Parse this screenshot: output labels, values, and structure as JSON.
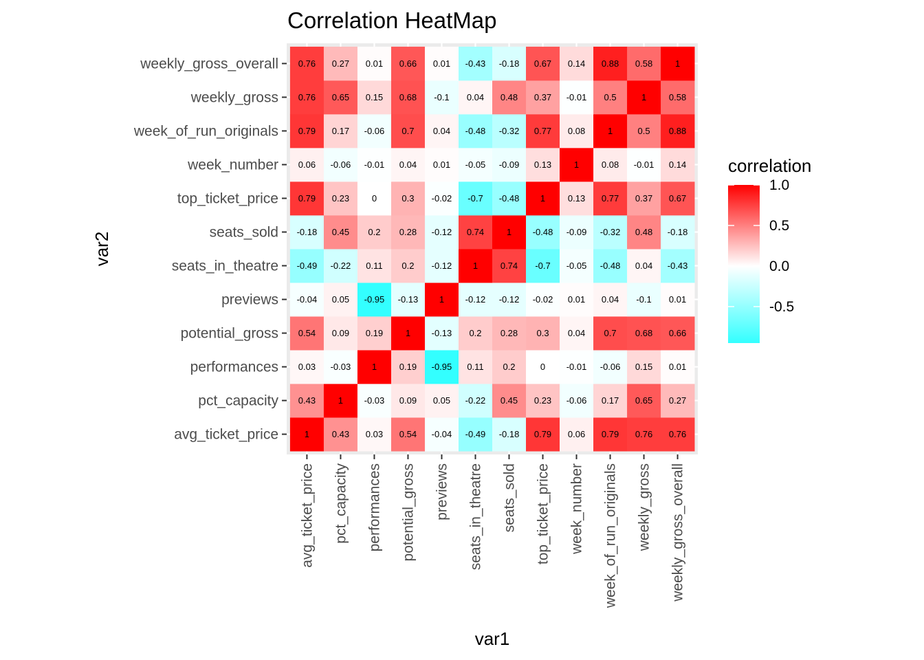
{
  "chart_data": {
    "type": "heatmap",
    "title": "Correlation HeatMap",
    "xlabel": "var1",
    "ylabel": "var2",
    "variables": [
      "avg_ticket_price",
      "pct_capacity",
      "performances",
      "potential_gross",
      "previews",
      "seats_in_theatre",
      "seats_sold",
      "top_ticket_price",
      "week_number",
      "week_of_run_originals",
      "weekly_gross",
      "weekly_gross_overall"
    ],
    "matrix": [
      [
        1,
        0.43,
        0.03,
        0.54,
        -0.04,
        -0.49,
        -0.18,
        0.79,
        0.06,
        0.79,
        0.76,
        0.76
      ],
      [
        0.43,
        1,
        -0.03,
        0.09,
        0.05,
        -0.22,
        0.45,
        0.23,
        -0.06,
        0.17,
        0.65,
        0.27
      ],
      [
        0.03,
        -0.03,
        1,
        0.19,
        -0.95,
        0.11,
        0.2,
        0,
        -0.01,
        -0.06,
        0.15,
        0.01
      ],
      [
        0.54,
        0.09,
        0.19,
        1,
        -0.13,
        0.2,
        0.28,
        0.3,
        0.04,
        0.7,
        0.68,
        0.66
      ],
      [
        -0.04,
        0.05,
        -0.95,
        -0.13,
        1,
        -0.12,
        -0.12,
        -0.02,
        0.01,
        0.04,
        -0.1,
        0.01
      ],
      [
        -0.49,
        -0.22,
        0.11,
        0.2,
        -0.12,
        1,
        0.74,
        -0.7,
        -0.05,
        -0.48,
        0.04,
        -0.43
      ],
      [
        -0.18,
        0.45,
        0.2,
        0.28,
        -0.12,
        0.74,
        1,
        -0.48,
        -0.09,
        -0.32,
        0.48,
        -0.18
      ],
      [
        0.79,
        0.23,
        0,
        0.3,
        -0.02,
        -0.7,
        -0.48,
        1,
        0.13,
        0.77,
        0.37,
        0.67
      ],
      [
        0.06,
        -0.06,
        -0.01,
        0.04,
        0.01,
        -0.05,
        -0.09,
        0.13,
        1,
        0.08,
        -0.01,
        0.14
      ],
      [
        0.79,
        0.17,
        -0.06,
        0.7,
        0.04,
        -0.48,
        -0.32,
        0.77,
        0.08,
        1,
        0.5,
        0.88
      ],
      [
        0.76,
        0.65,
        0.15,
        0.68,
        -0.1,
        0.04,
        0.48,
        0.37,
        -0.01,
        0.5,
        1,
        0.58
      ],
      [
        0.76,
        0.27,
        0.01,
        0.66,
        0.01,
        -0.43,
        -0.18,
        0.67,
        0.14,
        0.88,
        0.58,
        1
      ]
    ],
    "legend": {
      "title": "correlation",
      "breaks": [
        1.0,
        0.5,
        0.0,
        -0.5
      ],
      "break_labels": [
        "1.0",
        "0.5",
        "0.0",
        "-0.5"
      ],
      "range": [
        -0.95,
        1
      ],
      "low_color": "#33ffff",
      "mid_color": "#ffffff",
      "high_color": "#ff0000"
    },
    "panel_background": "#ebebeb",
    "grid": true
  }
}
